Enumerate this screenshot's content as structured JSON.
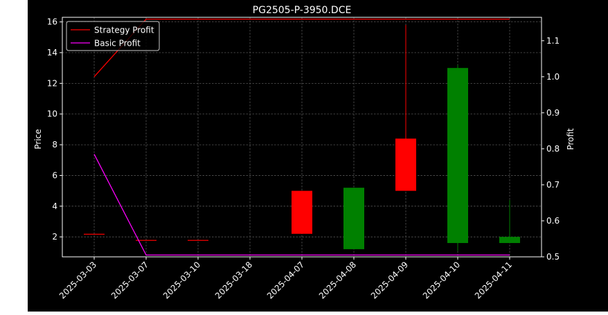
{
  "chart_data": {
    "type": "candlestick",
    "title": "PG2505-P-3950.DCE",
    "xlabel": "",
    "ylabel_left": "Price",
    "ylabel_right": "Profit",
    "categories": [
      "2025-03-03",
      "2025-03-07",
      "2025-03-10",
      "2025-03-18",
      "2025-04-07",
      "2025-04-08",
      "2025-04-09",
      "2025-04-10",
      "2025-04-11"
    ],
    "ylim_left": [
      0.7,
      16.3
    ],
    "yticks_left": [
      2,
      4,
      6,
      8,
      10,
      12,
      14,
      16
    ],
    "ylim_right": [
      0.5,
      1.165
    ],
    "yticks_right": [
      0.5,
      0.6,
      0.7,
      0.8,
      0.9,
      1.0,
      1.1
    ],
    "candles": [
      {
        "date": "2025-03-03",
        "open": 2.2,
        "high": 2.2,
        "low": 2.2,
        "close": 2.2,
        "direction": "down"
      },
      {
        "date": "2025-03-07",
        "open": 1.8,
        "high": 1.8,
        "low": 1.8,
        "close": 1.8,
        "direction": "down"
      },
      {
        "date": "2025-03-10",
        "open": 1.8,
        "high": 1.8,
        "low": 1.8,
        "close": 1.8,
        "direction": "down"
      },
      {
        "date": "2025-03-18",
        "open": null,
        "high": null,
        "low": null,
        "close": null,
        "direction": "none"
      },
      {
        "date": "2025-04-07",
        "open": 5.0,
        "high": 5.0,
        "low": 2.2,
        "close": 2.2,
        "direction": "down"
      },
      {
        "date": "2025-04-08",
        "open": 1.2,
        "high": 5.2,
        "low": 1.2,
        "close": 5.2,
        "direction": "up"
      },
      {
        "date": "2025-04-09",
        "open": 8.4,
        "high": 15.8,
        "low": 5.0,
        "close": 5.0,
        "direction": "down"
      },
      {
        "date": "2025-04-10",
        "open": 1.6,
        "high": 13.2,
        "low": 1.1,
        "close": 13.0,
        "direction": "up"
      },
      {
        "date": "2025-04-11",
        "open": 1.6,
        "high": 4.4,
        "low": 1.6,
        "close": 2.0,
        "direction": "up"
      }
    ],
    "series": [
      {
        "name": "Strategy Profit",
        "color": "#ff0000",
        "axis": "right",
        "values": [
          1.0,
          1.16,
          1.16,
          1.16,
          1.16,
          1.16,
          1.16,
          1.16,
          1.16
        ]
      },
      {
        "name": "Basic Profit",
        "color": "#ff00ff",
        "axis": "right",
        "values": [
          0.785,
          0.505,
          0.505,
          0.505,
          0.505,
          0.505,
          0.505,
          0.505,
          0.505
        ]
      }
    ],
    "colors": {
      "up": "#008000",
      "down": "#ff0000",
      "background": "#000000",
      "text": "#ffffff"
    },
    "grid": true,
    "legend_position": "top-left"
  }
}
